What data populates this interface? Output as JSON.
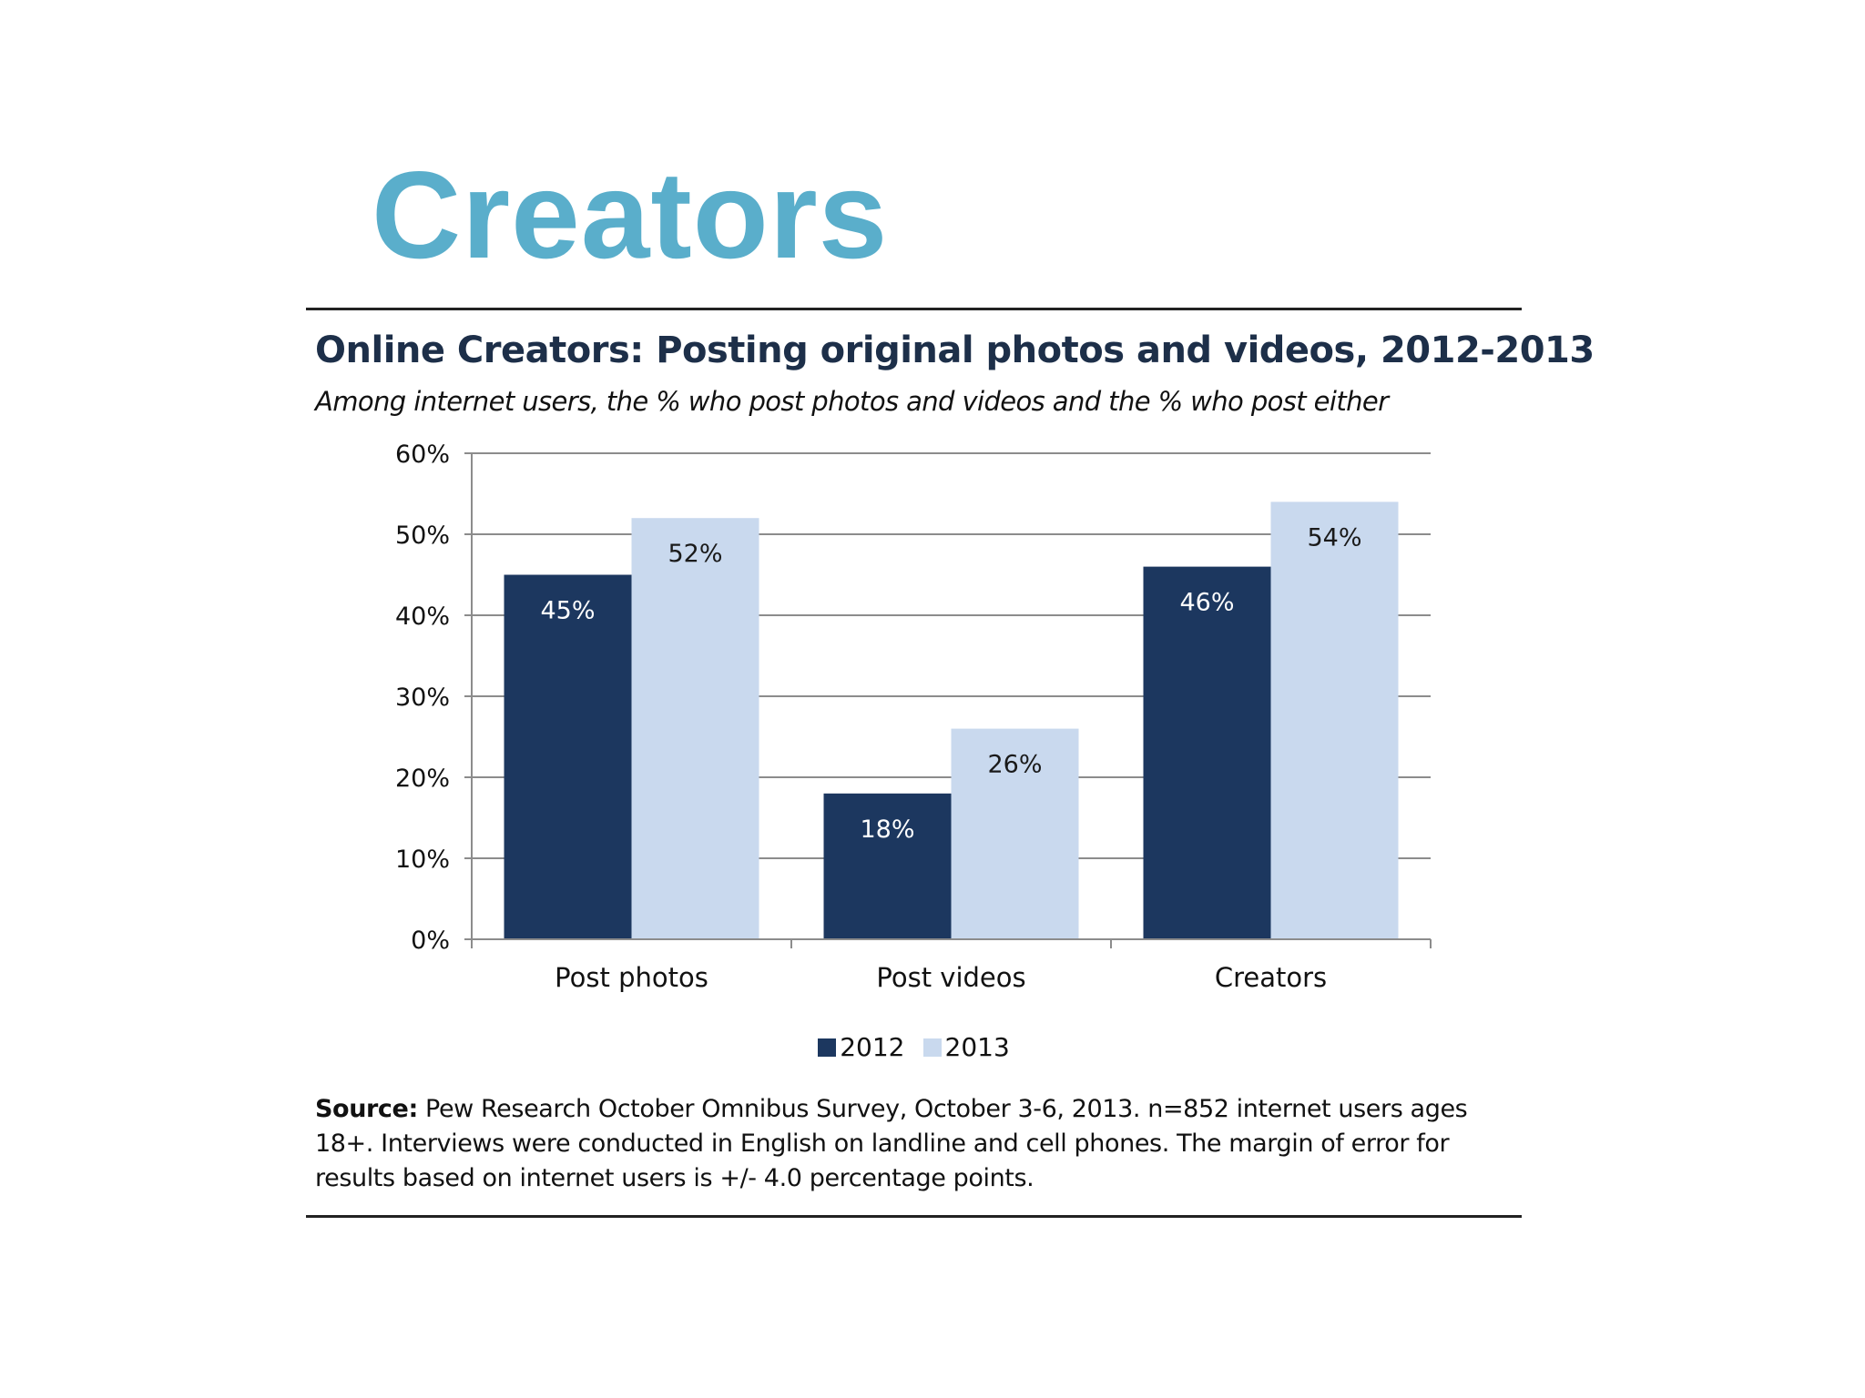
{
  "slide": {
    "title": "Creators"
  },
  "chart_data": {
    "type": "bar",
    "title": "Online Creators: Posting original photos and videos, 2012-2013",
    "subtitle": "Among internet users, the % who post photos and videos and the % who post either",
    "categories": [
      "Post photos",
      "Post videos",
      "Creators"
    ],
    "series": [
      {
        "name": "2012",
        "values": [
          45,
          18,
          46
        ],
        "labels": [
          "45%",
          "18%",
          "46%"
        ],
        "color": "#1c375f",
        "label_color": "#ffffff"
      },
      {
        "name": "2013",
        "values": [
          52,
          26,
          54
        ],
        "labels": [
          "52%",
          "26%",
          "54%"
        ],
        "color": "#c9d9ee",
        "label_color": "#1a1a1a"
      }
    ],
    "ylim": [
      0,
      60
    ],
    "yticks": [
      0,
      10,
      20,
      30,
      40,
      50,
      60
    ],
    "ytick_labels": [
      "0%",
      "10%",
      "20%",
      "30%",
      "40%",
      "50%",
      "60%"
    ],
    "xlabel": "",
    "ylabel": "",
    "grid": true,
    "legend": "bottom-center"
  },
  "source": {
    "label": "Source:",
    "text": " Pew Research October Omnibus Survey, October 3-6, 2013. n=852 internet users ages 18+. Interviews were conducted in English on landline and cell phones.  The margin of error for results based on internet users is +/- 4.0 percentage points."
  }
}
